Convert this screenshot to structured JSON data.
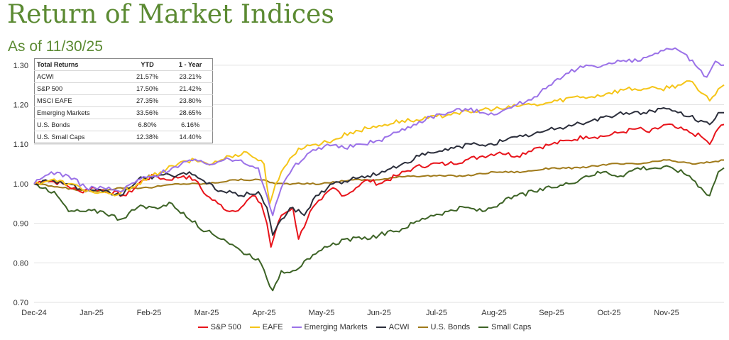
{
  "header": {
    "title": "Return of Market Indices",
    "subtitle": "As of 11/30/25"
  },
  "returns_table": {
    "headers": [
      "Total Returns",
      "YTD",
      "1 - Year"
    ],
    "rows": [
      {
        "name": "ACWI",
        "ytd": "21.57%",
        "one_year": "23.21%"
      },
      {
        "name": "S&P 500",
        "ytd": "17.50%",
        "one_year": "21.42%"
      },
      {
        "name": "MSCI EAFE",
        "ytd": "27.35%",
        "one_year": "23.80%"
      },
      {
        "name": "Emerging Markets",
        "ytd": "33.56%",
        "one_year": "28.65%"
      },
      {
        "name": "U.S. Bonds",
        "ytd": "6.80%",
        "one_year": "6.16%"
      },
      {
        "name": "U.S. Small Caps",
        "ytd": "12.38%",
        "one_year": "14.40%"
      }
    ]
  },
  "chart_data": {
    "type": "line",
    "title": "Return of Market Indices",
    "xlabel": "",
    "ylabel": "",
    "ylim": [
      0.7,
      1.35
    ],
    "yticks": [
      "0.70",
      "0.80",
      "0.90",
      "1.00",
      "1.10",
      "1.20",
      "1.30"
    ],
    "ytick_values": [
      0.7,
      0.8,
      0.9,
      1.0,
      1.1,
      1.2,
      1.3
    ],
    "x_ticks": [
      "Dec-24",
      "Jan-25",
      "Feb-25",
      "Mar-25",
      "Apr-25",
      "May-25",
      "Jun-25",
      "Jul-25",
      "Aug-25",
      "Sep-25",
      "Oct-25",
      "Nov-25"
    ],
    "x_range_months": [
      0,
      12
    ],
    "grid": "horizontal",
    "legend_position": "bottom",
    "series": [
      {
        "name": "S&P 500",
        "color": "#e8141b",
        "points": [
          [
            0,
            1.0
          ],
          [
            0.2,
            1.01
          ],
          [
            0.5,
            1.0
          ],
          [
            0.8,
            0.98
          ],
          [
            1.0,
            0.99
          ],
          [
            1.3,
            0.98
          ],
          [
            1.6,
            0.97
          ],
          [
            1.9,
            1.01
          ],
          [
            2.1,
            1.02
          ],
          [
            2.3,
            1.01
          ],
          [
            2.6,
            1.02
          ],
          [
            2.8,
            1.01
          ],
          [
            3.0,
            0.97
          ],
          [
            3.2,
            0.95
          ],
          [
            3.4,
            0.93
          ],
          [
            3.6,
            0.94
          ],
          [
            3.8,
            0.97
          ],
          [
            3.95,
            0.95
          ],
          [
            4.05,
            0.9
          ],
          [
            4.12,
            0.84
          ],
          [
            4.2,
            0.88
          ],
          [
            4.3,
            0.92
          ],
          [
            4.5,
            0.94
          ],
          [
            4.6,
            0.86
          ],
          [
            4.8,
            0.93
          ],
          [
            5.0,
            0.96
          ],
          [
            5.2,
            0.99
          ],
          [
            5.4,
            0.97
          ],
          [
            5.6,
            0.99
          ],
          [
            5.8,
            1.01
          ],
          [
            6.0,
            1.0
          ],
          [
            6.3,
            1.02
          ],
          [
            6.6,
            1.04
          ],
          [
            6.9,
            1.05
          ],
          [
            7.2,
            1.05
          ],
          [
            7.5,
            1.06
          ],
          [
            7.8,
            1.07
          ],
          [
            8.1,
            1.08
          ],
          [
            8.4,
            1.07
          ],
          [
            8.7,
            1.09
          ],
          [
            9.0,
            1.1
          ],
          [
            9.3,
            1.11
          ],
          [
            9.6,
            1.12
          ],
          [
            9.9,
            1.12
          ],
          [
            10.2,
            1.13
          ],
          [
            10.5,
            1.14
          ],
          [
            10.7,
            1.13
          ],
          [
            11.0,
            1.15
          ],
          [
            11.2,
            1.14
          ],
          [
            11.4,
            1.13
          ],
          [
            11.6,
            1.12
          ],
          [
            11.75,
            1.1
          ],
          [
            11.9,
            1.14
          ],
          [
            12.0,
            1.15
          ]
        ]
      },
      {
        "name": "EAFE",
        "color": "#f5c518",
        "points": [
          [
            0,
            1.0
          ],
          [
            0.3,
            1.01
          ],
          [
            0.6,
            1.0
          ],
          [
            1.0,
            0.98
          ],
          [
            1.4,
            0.97
          ],
          [
            1.8,
            1.0
          ],
          [
            2.2,
            1.03
          ],
          [
            2.5,
            1.05
          ],
          [
            2.8,
            1.06
          ],
          [
            3.1,
            1.05
          ],
          [
            3.4,
            1.07
          ],
          [
            3.7,
            1.08
          ],
          [
            4.0,
            1.05
          ],
          [
            4.1,
            0.95
          ],
          [
            4.2,
            1.0
          ],
          [
            4.4,
            1.05
          ],
          [
            4.6,
            1.09
          ],
          [
            4.9,
            1.1
          ],
          [
            5.2,
            1.11
          ],
          [
            5.5,
            1.13
          ],
          [
            5.8,
            1.14
          ],
          [
            6.1,
            1.15
          ],
          [
            6.4,
            1.16
          ],
          [
            6.7,
            1.16
          ],
          [
            7.0,
            1.17
          ],
          [
            7.3,
            1.18
          ],
          [
            7.6,
            1.18
          ],
          [
            7.9,
            1.19
          ],
          [
            8.2,
            1.19
          ],
          [
            8.5,
            1.2
          ],
          [
            8.8,
            1.2
          ],
          [
            9.1,
            1.21
          ],
          [
            9.4,
            1.22
          ],
          [
            9.7,
            1.22
          ],
          [
            10.0,
            1.23
          ],
          [
            10.3,
            1.24
          ],
          [
            10.6,
            1.24
          ],
          [
            10.9,
            1.24
          ],
          [
            11.2,
            1.25
          ],
          [
            11.4,
            1.26
          ],
          [
            11.6,
            1.23
          ],
          [
            11.75,
            1.21
          ],
          [
            11.9,
            1.24
          ],
          [
            12.0,
            1.25
          ]
        ]
      },
      {
        "name": "Emerging Markets",
        "color": "#9b72e8",
        "points": [
          [
            0,
            1.0
          ],
          [
            0.3,
            1.03
          ],
          [
            0.6,
            1.02
          ],
          [
            0.9,
            0.99
          ],
          [
            1.2,
            0.99
          ],
          [
            1.5,
            0.98
          ],
          [
            1.8,
            1.01
          ],
          [
            2.1,
            1.02
          ],
          [
            2.4,
            1.04
          ],
          [
            2.7,
            1.06
          ],
          [
            3.0,
            1.05
          ],
          [
            3.3,
            1.06
          ],
          [
            3.6,
            1.06
          ],
          [
            3.9,
            1.04
          ],
          [
            4.05,
            0.97
          ],
          [
            4.15,
            0.92
          ],
          [
            4.3,
            0.99
          ],
          [
            4.5,
            1.04
          ],
          [
            4.8,
            1.08
          ],
          [
            5.1,
            1.1
          ],
          [
            5.4,
            1.09
          ],
          [
            5.7,
            1.1
          ],
          [
            6.0,
            1.11
          ],
          [
            6.3,
            1.13
          ],
          [
            6.6,
            1.15
          ],
          [
            6.9,
            1.17
          ],
          [
            7.2,
            1.18
          ],
          [
            7.5,
            1.19
          ],
          [
            7.8,
            1.18
          ],
          [
            8.1,
            1.18
          ],
          [
            8.4,
            1.2
          ],
          [
            8.7,
            1.22
          ],
          [
            9.0,
            1.25
          ],
          [
            9.3,
            1.28
          ],
          [
            9.6,
            1.3
          ],
          [
            9.9,
            1.3
          ],
          [
            10.2,
            1.31
          ],
          [
            10.5,
            1.31
          ],
          [
            10.8,
            1.33
          ],
          [
            11.1,
            1.34
          ],
          [
            11.3,
            1.33
          ],
          [
            11.5,
            1.3
          ],
          [
            11.7,
            1.27
          ],
          [
            11.85,
            1.31
          ],
          [
            12.0,
            1.3
          ]
        ]
      },
      {
        "name": "ACWI",
        "color": "#2b2e3b",
        "points": [
          [
            0,
            1.0
          ],
          [
            0.3,
            1.01
          ],
          [
            0.6,
            1.0
          ],
          [
            0.9,
            0.98
          ],
          [
            1.2,
            0.98
          ],
          [
            1.5,
            0.97
          ],
          [
            1.8,
            1.01
          ],
          [
            2.1,
            1.02
          ],
          [
            2.4,
            1.02
          ],
          [
            2.7,
            1.03
          ],
          [
            3.0,
            1.0
          ],
          [
            3.3,
            0.98
          ],
          [
            3.6,
            0.97
          ],
          [
            3.9,
            0.98
          ],
          [
            4.05,
            0.94
          ],
          [
            4.15,
            0.87
          ],
          [
            4.3,
            0.91
          ],
          [
            4.5,
            0.94
          ],
          [
            4.7,
            0.92
          ],
          [
            4.9,
            0.97
          ],
          [
            5.2,
            1.0
          ],
          [
            5.5,
            1.01
          ],
          [
            5.8,
            1.02
          ],
          [
            6.1,
            1.03
          ],
          [
            6.4,
            1.05
          ],
          [
            6.7,
            1.07
          ],
          [
            7.0,
            1.08
          ],
          [
            7.3,
            1.09
          ],
          [
            7.6,
            1.1
          ],
          [
            7.9,
            1.1
          ],
          [
            8.2,
            1.11
          ],
          [
            8.5,
            1.12
          ],
          [
            8.8,
            1.13
          ],
          [
            9.1,
            1.14
          ],
          [
            9.4,
            1.15
          ],
          [
            9.7,
            1.16
          ],
          [
            10.0,
            1.17
          ],
          [
            10.3,
            1.18
          ],
          [
            10.6,
            1.18
          ],
          [
            10.9,
            1.19
          ],
          [
            11.2,
            1.18
          ],
          [
            11.4,
            1.17
          ],
          [
            11.6,
            1.16
          ],
          [
            11.75,
            1.15
          ],
          [
            11.9,
            1.18
          ],
          [
            12.0,
            1.18
          ]
        ]
      },
      {
        "name": "U.S. Bonds",
        "color": "#a07a1a",
        "points": [
          [
            0,
            1.0
          ],
          [
            0.5,
            0.99
          ],
          [
            1.0,
            0.98
          ],
          [
            1.5,
            0.99
          ],
          [
            2.0,
            0.99
          ],
          [
            2.5,
            1.0
          ],
          [
            3.0,
            1.0
          ],
          [
            3.5,
            1.01
          ],
          [
            4.0,
            1.01
          ],
          [
            4.2,
            1.0
          ],
          [
            4.5,
            1.0
          ],
          [
            5.0,
            1.0
          ],
          [
            5.5,
            1.01
          ],
          [
            6.0,
            1.01
          ],
          [
            6.5,
            1.02
          ],
          [
            7.0,
            1.02
          ],
          [
            7.5,
            1.02
          ],
          [
            8.0,
            1.03
          ],
          [
            8.5,
            1.03
          ],
          [
            9.0,
            1.04
          ],
          [
            9.5,
            1.04
          ],
          [
            10.0,
            1.05
          ],
          [
            10.5,
            1.05
          ],
          [
            11.0,
            1.06
          ],
          [
            11.5,
            1.05
          ],
          [
            12.0,
            1.06
          ]
        ]
      },
      {
        "name": "Small Caps",
        "color": "#3d6326",
        "points": [
          [
            0,
            1.0
          ],
          [
            0.2,
            0.99
          ],
          [
            0.4,
            0.97
          ],
          [
            0.6,
            0.93
          ],
          [
            0.9,
            0.93
          ],
          [
            1.2,
            0.93
          ],
          [
            1.5,
            0.91
          ],
          [
            1.8,
            0.94
          ],
          [
            2.1,
            0.94
          ],
          [
            2.4,
            0.95
          ],
          [
            2.7,
            0.91
          ],
          [
            3.0,
            0.88
          ],
          [
            3.3,
            0.86
          ],
          [
            3.6,
            0.83
          ],
          [
            3.9,
            0.81
          ],
          [
            4.05,
            0.76
          ],
          [
            4.15,
            0.73
          ],
          [
            4.3,
            0.78
          ],
          [
            4.5,
            0.78
          ],
          [
            4.8,
            0.81
          ],
          [
            5.1,
            0.84
          ],
          [
            5.4,
            0.86
          ],
          [
            5.7,
            0.86
          ],
          [
            6.0,
            0.87
          ],
          [
            6.3,
            0.88
          ],
          [
            6.6,
            0.9
          ],
          [
            6.9,
            0.92
          ],
          [
            7.2,
            0.93
          ],
          [
            7.5,
            0.94
          ],
          [
            7.8,
            0.93
          ],
          [
            8.1,
            0.95
          ],
          [
            8.4,
            0.97
          ],
          [
            8.7,
            0.98
          ],
          [
            9.0,
            0.99
          ],
          [
            9.3,
            1.0
          ],
          [
            9.6,
            1.02
          ],
          [
            9.9,
            1.03
          ],
          [
            10.2,
            1.02
          ],
          [
            10.5,
            1.04
          ],
          [
            10.8,
            1.04
          ],
          [
            11.1,
            1.04
          ],
          [
            11.4,
            1.02
          ],
          [
            11.6,
            0.99
          ],
          [
            11.75,
            0.97
          ],
          [
            11.9,
            1.03
          ],
          [
            12.0,
            1.04
          ]
        ]
      }
    ]
  }
}
